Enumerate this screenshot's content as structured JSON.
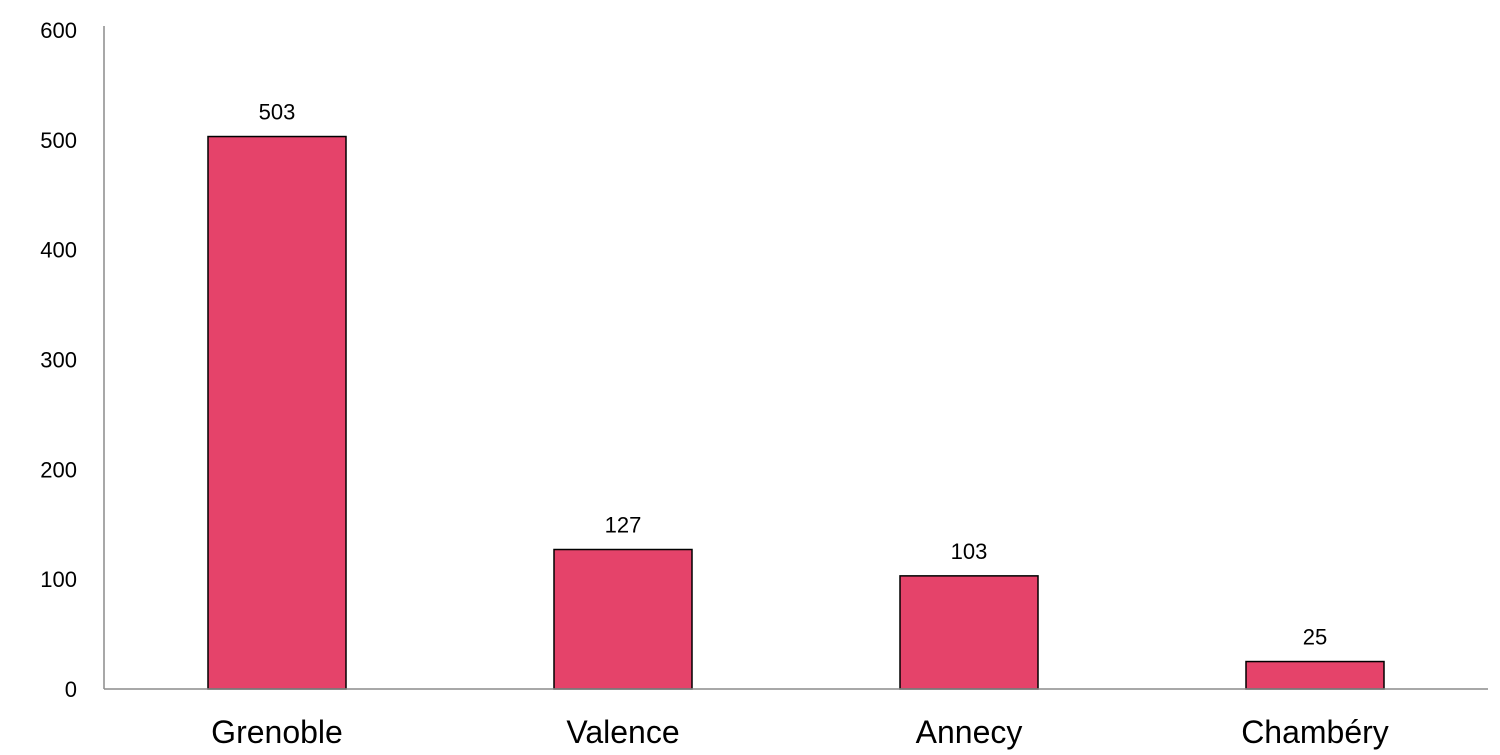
{
  "chart_data": {
    "type": "bar",
    "title": "",
    "xlabel": "",
    "ylabel": "",
    "categories": [
      "Grenoble",
      "Valence",
      "Annecy",
      "Chambéry"
    ],
    "values": [
      503,
      127,
      103,
      25
    ],
    "data_labels": [
      "503",
      "127",
      "103",
      "25"
    ],
    "ylim": [
      0,
      600
    ],
    "yticks": [
      0,
      100,
      200,
      300,
      400,
      500,
      600
    ],
    "ytick_labels": [
      "0",
      "100",
      "200",
      "300",
      "400",
      "500",
      "600"
    ],
    "grid": false,
    "legend": "none",
    "bar_color": "#e5436a",
    "bar_edge_color": "#000000",
    "axis_color": "#8c8c8c"
  }
}
